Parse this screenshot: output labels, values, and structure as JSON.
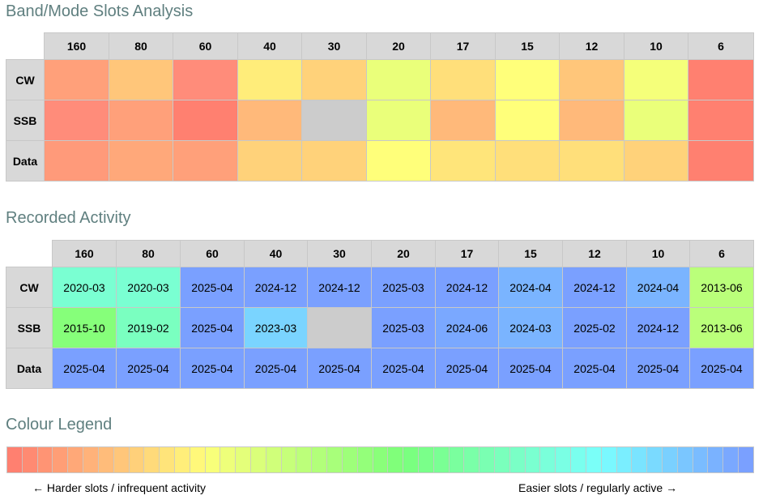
{
  "titles": {
    "analysis": "Band/Mode Slots Analysis",
    "activity": "Recorded Activity",
    "legend": "Colour Legend"
  },
  "bands": [
    "160",
    "80",
    "60",
    "40",
    "30",
    "20",
    "17",
    "15",
    "12",
    "10",
    "6"
  ],
  "modes": [
    "CW",
    "SSB",
    "Data"
  ],
  "analysis_colors": [
    [
      "#ffa07a",
      "#ffc67a",
      "#ff8c7a",
      "#ffed7a",
      "#ffd27a",
      "#eaff7a",
      "#ffdf7a",
      "#ffff7a",
      "#ffc67a",
      "#f5ff7a",
      "#ff8070"
    ],
    [
      "#ff8c7a",
      "#ffa07a",
      "#ff8070",
      "#ffb97a",
      "#cccccc",
      "#eaff7a",
      "#ffb97a",
      "#ffff7a",
      "#ffb97a",
      "#eaff7a",
      "#ff8070"
    ],
    [
      "#ff9a7a",
      "#ffa87a",
      "#ffa07a",
      "#ffd27a",
      "#ffd27a",
      "#ffff7a",
      "#ffe57a",
      "#ffdf7a",
      "#ffdf7a",
      "#ffd27a",
      "#ff8070"
    ]
  ],
  "activity": [
    [
      "2020-03",
      "2020-03",
      "2025-04",
      "2024-12",
      "2024-12",
      "2025-03",
      "2024-12",
      "2024-04",
      "2024-12",
      "2024-04",
      "2013-06"
    ],
    [
      "2015-10",
      "2019-02",
      "2025-04",
      "2023-03",
      "",
      "2025-03",
      "2024-06",
      "2024-03",
      "2025-02",
      "2024-12",
      "2013-06"
    ],
    [
      "2025-04",
      "2025-04",
      "2025-04",
      "2025-04",
      "2025-04",
      "2025-04",
      "2025-04",
      "2025-04",
      "2025-04",
      "2025-04",
      "2025-04"
    ]
  ],
  "activity_colors": [
    [
      "#7affd2",
      "#7affd2",
      "#7aa0ff",
      "#7aa0ff",
      "#7aa0ff",
      "#7aa0ff",
      "#7aa0ff",
      "#7ab4ff",
      "#7aa0ff",
      "#7ab4ff",
      "#baff7a"
    ],
    [
      "#86ff7a",
      "#7affc0",
      "#7aa0ff",
      "#7ad4ff",
      "#cccccc",
      "#7aa0ff",
      "#7aa8ff",
      "#7ab4ff",
      "#7aa0ff",
      "#7aa0ff",
      "#baff7a"
    ],
    [
      "#7aa0ff",
      "#7aa0ff",
      "#7aa0ff",
      "#7aa0ff",
      "#7aa0ff",
      "#7aa0ff",
      "#7aa0ff",
      "#7aa0ff",
      "#7aa0ff",
      "#7aa0ff",
      "#7aa0ff"
    ]
  ],
  "legend": {
    "left_label": "← Harder slots / infrequent activity",
    "right_label": "Easier slots / regularly active →",
    "colors": [
      "#ff8070",
      "#ff8a72",
      "#ff9474",
      "#ff9e76",
      "#ffa878",
      "#ffb27a",
      "#ffbc7a",
      "#ffc67a",
      "#ffd07a",
      "#ffda7a",
      "#ffe47a",
      "#ffee7a",
      "#fff87a",
      "#f8ff7a",
      "#eeff7a",
      "#e4ff7a",
      "#daff7a",
      "#d0ff7a",
      "#c6ff7a",
      "#bcff7a",
      "#b2ff7a",
      "#a8ff7a",
      "#9eff7a",
      "#94ff7a",
      "#8aff7a",
      "#80ff7a",
      "#7aff80",
      "#7aff8a",
      "#7aff94",
      "#7aff9e",
      "#7affa8",
      "#7affb2",
      "#7affbc",
      "#7affc6",
      "#7affd0",
      "#7affda",
      "#7affe4",
      "#7affee",
      "#7afff8",
      "#7af8ff",
      "#7aeeff",
      "#7ae4ff",
      "#7adaff",
      "#7ad0ff",
      "#7ac6ff",
      "#7abcff",
      "#7ab2ff",
      "#7aa8ff",
      "#7aa0ff"
    ]
  }
}
